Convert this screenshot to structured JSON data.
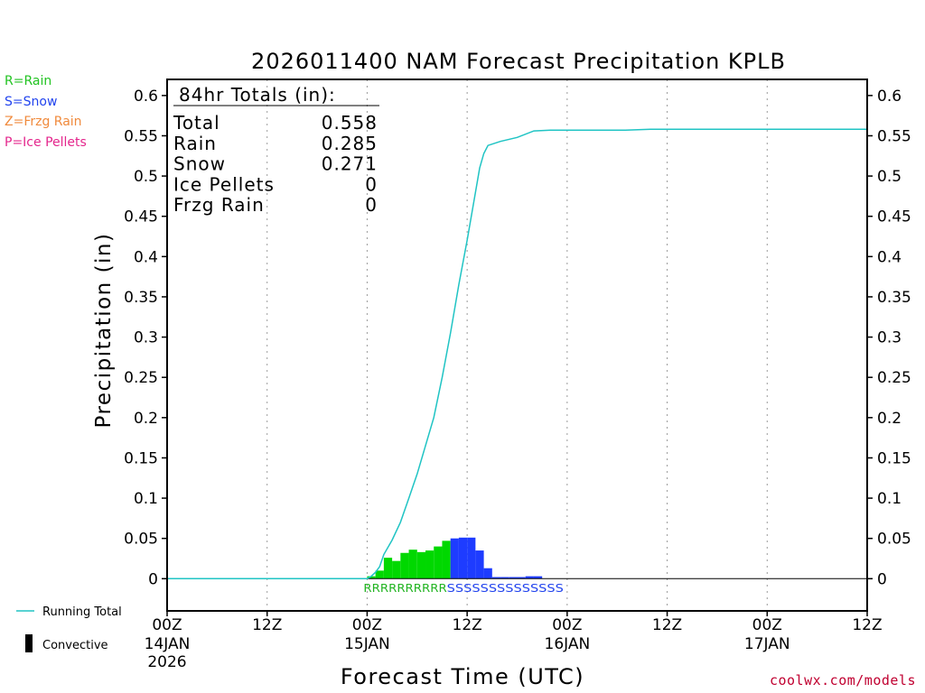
{
  "chart_data": {
    "type": "bar",
    "title": "2026011400 NAM Forecast Precipitation KPLB",
    "xlabel": "Forecast Time (UTC)",
    "ylabel": "Precipitation (in)",
    "ylim": [
      -0.04,
      0.62
    ],
    "xlim_hours": [
      0,
      84
    ],
    "y_ticks": [
      0,
      0.05,
      0.1,
      0.15,
      0.2,
      0.25,
      0.3,
      0.35,
      0.4,
      0.45,
      0.5,
      0.55,
      0.6
    ],
    "y_tick_labels": [
      "0",
      "0.05",
      "0.1",
      "0.15",
      "0.2",
      "0.25",
      "0.3",
      "0.35",
      "0.4",
      "0.45",
      "0.5",
      "0.55",
      "0.6"
    ],
    "x_ticks": [
      {
        "hour": 0,
        "label": "00Z",
        "date": "14JAN",
        "year": "2026"
      },
      {
        "hour": 12,
        "label": "12Z",
        "date": "",
        "year": ""
      },
      {
        "hour": 24,
        "label": "00Z",
        "date": "15JAN",
        "year": ""
      },
      {
        "hour": 36,
        "label": "12Z",
        "date": "",
        "year": ""
      },
      {
        "hour": 48,
        "label": "00Z",
        "date": "16JAN",
        "year": ""
      },
      {
        "hour": 60,
        "label": "12Z",
        "date": "",
        "year": ""
      },
      {
        "hour": 72,
        "label": "00Z",
        "date": "17JAN",
        "year": ""
      },
      {
        "hour": 84,
        "label": "12Z",
        "date": "",
        "year": ""
      }
    ],
    "hourly_bars": [
      {
        "hour": 24,
        "value": 0.003,
        "type": "rain"
      },
      {
        "hour": 25,
        "value": 0.01,
        "type": "rain"
      },
      {
        "hour": 26,
        "value": 0.026,
        "type": "rain"
      },
      {
        "hour": 27,
        "value": 0.022,
        "type": "rain"
      },
      {
        "hour": 28,
        "value": 0.032,
        "type": "rain"
      },
      {
        "hour": 29,
        "value": 0.036,
        "type": "rain"
      },
      {
        "hour": 30,
        "value": 0.033,
        "type": "rain"
      },
      {
        "hour": 31,
        "value": 0.035,
        "type": "rain"
      },
      {
        "hour": 32,
        "value": 0.04,
        "type": "rain"
      },
      {
        "hour": 33,
        "value": 0.047,
        "type": "rain"
      },
      {
        "hour": 34,
        "value": 0.05,
        "type": "snow"
      },
      {
        "hour": 35,
        "value": 0.051,
        "type": "snow"
      },
      {
        "hour": 36,
        "value": 0.051,
        "type": "snow"
      },
      {
        "hour": 37,
        "value": 0.035,
        "type": "snow"
      },
      {
        "hour": 38,
        "value": 0.013,
        "type": "snow"
      },
      {
        "hour": 39,
        "value": 0.002,
        "type": "snow"
      },
      {
        "hour": 40,
        "value": 0.002,
        "type": "snow"
      },
      {
        "hour": 41,
        "value": 0.002,
        "type": "snow"
      },
      {
        "hour": 42,
        "value": 0.002,
        "type": "snow"
      },
      {
        "hour": 43,
        "value": 0.003,
        "type": "snow"
      },
      {
        "hour": 44,
        "value": 0.003,
        "type": "snow"
      }
    ],
    "running_total": [
      [
        0,
        0
      ],
      [
        24,
        0
      ],
      [
        24.5,
        0.003
      ],
      [
        25,
        0.008
      ],
      [
        25.5,
        0.015
      ],
      [
        26,
        0.03
      ],
      [
        27,
        0.048
      ],
      [
        28,
        0.07
      ],
      [
        29,
        0.1
      ],
      [
        30,
        0.13
      ],
      [
        31,
        0.165
      ],
      [
        32,
        0.2
      ],
      [
        33,
        0.25
      ],
      [
        34,
        0.305
      ],
      [
        35,
        0.365
      ],
      [
        36,
        0.42
      ],
      [
        37,
        0.48
      ],
      [
        37.5,
        0.51
      ],
      [
        38,
        0.528
      ],
      [
        38.5,
        0.538
      ],
      [
        40,
        0.543
      ],
      [
        42,
        0.548
      ],
      [
        44,
        0.556
      ],
      [
        46,
        0.557
      ],
      [
        55,
        0.557
      ],
      [
        58,
        0.558
      ],
      [
        84,
        0.558
      ]
    ],
    "precip_type_strip": [
      {
        "text": "RRRRRRRRRR",
        "type": "rain"
      },
      {
        "text": "SSSSSSSSSSSSSS",
        "type": "snow"
      }
    ],
    "totals": {
      "header": "84hr Totals (in):",
      "rows": [
        {
          "label": "Total",
          "value": "0.558"
        },
        {
          "label": "Rain",
          "value": "0.285"
        },
        {
          "label": "Snow",
          "value": "0.271"
        },
        {
          "label": "Ice Pellets",
          "value": "0"
        },
        {
          "label": "Frzg Rain",
          "value": "0"
        }
      ]
    },
    "series_legend": [
      {
        "name": "Running Total",
        "kind": "line"
      },
      {
        "name": "Convective",
        "kind": "bar"
      }
    ]
  },
  "type_legend": [
    {
      "text": "R=Rain",
      "color": "#22c322"
    },
    {
      "text": "S=Snow",
      "color": "#2244ee"
    },
    {
      "text": "Z=Frzg Rain",
      "color": "#f08a3c"
    },
    {
      "text": "P=Ice Pellets",
      "color": "#e4268c"
    }
  ],
  "colors": {
    "rain": "#00d800",
    "snow": "#1e3cff",
    "running_total": "#20c4c4",
    "rain_text": "#22b422",
    "snow_text": "#2244ee",
    "credit": "#c00030"
  },
  "credit": "coolwx.com/models"
}
